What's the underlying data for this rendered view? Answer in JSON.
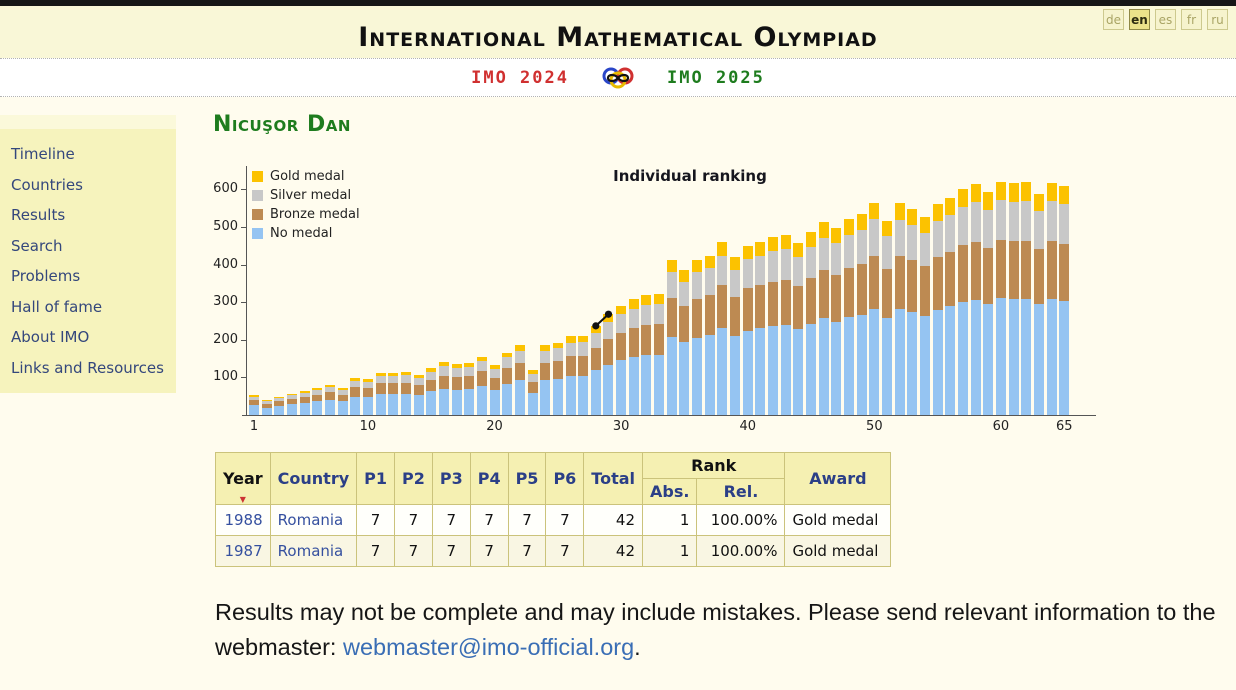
{
  "header": {
    "title": "International Mathematical Olympiad",
    "languages": [
      {
        "code": "de",
        "active": false
      },
      {
        "code": "en",
        "active": true
      },
      {
        "code": "es",
        "active": false
      },
      {
        "code": "fr",
        "active": false
      },
      {
        "code": "ru",
        "active": false
      }
    ],
    "nav": {
      "imo2024": "IMO 2024",
      "imo2025": "IMO 2025"
    }
  },
  "sidebar": {
    "items": [
      "Timeline",
      "Countries",
      "Results",
      "Search",
      "Problems",
      "Hall of fame",
      "About IMO",
      "Links and Resources"
    ]
  },
  "page": {
    "person_name": "Nicuşor Dan"
  },
  "chart_data": {
    "type": "bar",
    "stacked": true,
    "title": "Individual ranking",
    "x_ticks": [
      1,
      10,
      20,
      30,
      40,
      50,
      60,
      65
    ],
    "y_ticks": [
      100,
      200,
      300,
      400,
      500,
      600
    ],
    "ylim": [
      0,
      660
    ],
    "xlim": [
      1,
      65
    ],
    "grid": false,
    "legend_position": "top-left",
    "legend": [
      {
        "label": "Gold medal",
        "color": "#fcc200"
      },
      {
        "label": "Silver medal",
        "color": "#c8c8c8"
      },
      {
        "label": "Bronze medal",
        "color": "#bd8a52"
      },
      {
        "label": "No medal",
        "color": "#95c4f2"
      }
    ],
    "series": [
      {
        "name": "No medal",
        "color": "#95c4f2",
        "values": [
          26,
          19,
          24,
          28,
          32,
          36,
          40,
          36,
          49,
          48,
          56,
          56,
          57,
          53,
          63,
          70,
          67,
          69,
          78,
          66,
          83,
          93,
          59,
          92,
          96,
          104,
          104,
          119,
          134,
          146,
          154,
          159,
          160,
          207,
          193,
          206,
          212,
          230,
          209,
          224,
          231,
          237,
          240,
          228,
          242,
          257,
          248,
          260,
          267,
          283,
          259,
          282,
          274,
          263,
          280,
          289,
          301,
          307,
          296,
          310,
          308,
          309,
          295,
          309,
          304
        ]
      },
      {
        "name": "Bronze medal",
        "color": "#bd8a52",
        "values": [
          13,
          10,
          12,
          14,
          16,
          18,
          20,
          18,
          25,
          24,
          28,
          28,
          29,
          27,
          31,
          35,
          34,
          35,
          39,
          33,
          42,
          46,
          30,
          47,
          48,
          52,
          53,
          59,
          67,
          73,
          77,
          80,
          81,
          103,
          96,
          103,
          106,
          115,
          105,
          113,
          115,
          118,
          120,
          114,
          122,
          128,
          125,
          130,
          134,
          141,
          129,
          141,
          137,
          132,
          140,
          144,
          151,
          154,
          149,
          155,
          154,
          155,
          147,
          155,
          152
        ]
      },
      {
        "name": "Silver medal",
        "color": "#c8c8c8",
        "values": [
          9,
          7,
          8,
          10,
          11,
          12,
          14,
          12,
          17,
          16,
          19,
          19,
          20,
          18,
          21,
          24,
          23,
          24,
          26,
          22,
          28,
          31,
          20,
          32,
          33,
          36,
          36,
          40,
          46,
          49,
          52,
          54,
          55,
          70,
          65,
          70,
          72,
          78,
          71,
          77,
          78,
          80,
          81,
          78,
          83,
          87,
          85,
          88,
          91,
          96,
          88,
          96,
          93,
          90,
          95,
          98,
          102,
          105,
          101,
          106,
          105,
          105,
          100,
          105,
          104
        ]
      },
      {
        "name": "Gold medal",
        "color": "#fcc200",
        "values": [
          4,
          3,
          4,
          4,
          5,
          6,
          6,
          6,
          8,
          8,
          9,
          9,
          9,
          9,
          10,
          11,
          11,
          11,
          12,
          11,
          13,
          15,
          10,
          15,
          15,
          17,
          17,
          19,
          21,
          23,
          25,
          25,
          26,
          33,
          31,
          33,
          34,
          37,
          34,
          36,
          37,
          38,
          38,
          37,
          39,
          41,
          40,
          42,
          43,
          45,
          41,
          45,
          44,
          42,
          45,
          46,
          48,
          49,
          48,
          50,
          49,
          50,
          47,
          49,
          49
        ]
      }
    ],
    "totals": [
      52,
      39,
      48,
      56,
      64,
      72,
      80,
      72,
      99,
      96,
      112,
      112,
      115,
      107,
      125,
      140,
      135,
      139,
      155,
      132,
      166,
      185,
      119,
      186,
      192,
      209,
      210,
      237,
      268,
      291,
      308,
      318,
      322,
      413,
      385,
      412,
      424,
      460,
      419,
      450,
      461,
      473,
      479,
      457,
      486,
      513,
      498,
      520,
      535,
      565,
      517,
      564,
      548,
      527,
      560,
      577,
      602,
      615,
      594,
      621,
      616,
      619,
      589,
      618,
      609
    ],
    "markers": {
      "color": "#111111",
      "points": [
        {
          "x": 28,
          "y": 237
        },
        {
          "x": 29,
          "y": 268
        }
      ]
    }
  },
  "table": {
    "headers": {
      "year": "Year",
      "country": "Country",
      "p": [
        "P1",
        "P2",
        "P3",
        "P4",
        "P5",
        "P6"
      ],
      "total": "Total",
      "rank": "Rank",
      "abs": "Abs.",
      "rel": "Rel.",
      "award": "Award"
    },
    "sort_indicator": "▼",
    "rows": [
      {
        "year": "1988",
        "country": "Romania",
        "p": [
          "7",
          "7",
          "7",
          "7",
          "7",
          "7"
        ],
        "total": "42",
        "abs": "1",
        "rel": "100.00%",
        "award": "Gold medal"
      },
      {
        "year": "1987",
        "country": "Romania",
        "p": [
          "7",
          "7",
          "7",
          "7",
          "7",
          "7"
        ],
        "total": "42",
        "abs": "1",
        "rel": "100.00%",
        "award": "Gold medal"
      }
    ]
  },
  "footer": {
    "text_before": "Results may not be complete and may include mistakes. Please send relevant information to the webmaster: ",
    "email": "webmaster@imo-official.org",
    "text_after": "."
  },
  "colors": {
    "header_band": "#f9f7d7",
    "content_bg": "#fffcee",
    "sidebar_bg": "#f6f3bd",
    "nav_red": "#d03030",
    "nav_green": "#1e7c1e",
    "heading_green": "#1e7c1e",
    "sidebar_link": "#34477c",
    "table_border": "#cbc37b",
    "table_header_bg": "#f5f0b2",
    "table_header_text": "#2b3f87",
    "row_link": "#35509f",
    "email_link": "#3a6eb5",
    "gold": "#fcc200",
    "silver": "#c8c8c8",
    "bronze": "#bd8a52",
    "no_medal_blue": "#95c4f2"
  }
}
